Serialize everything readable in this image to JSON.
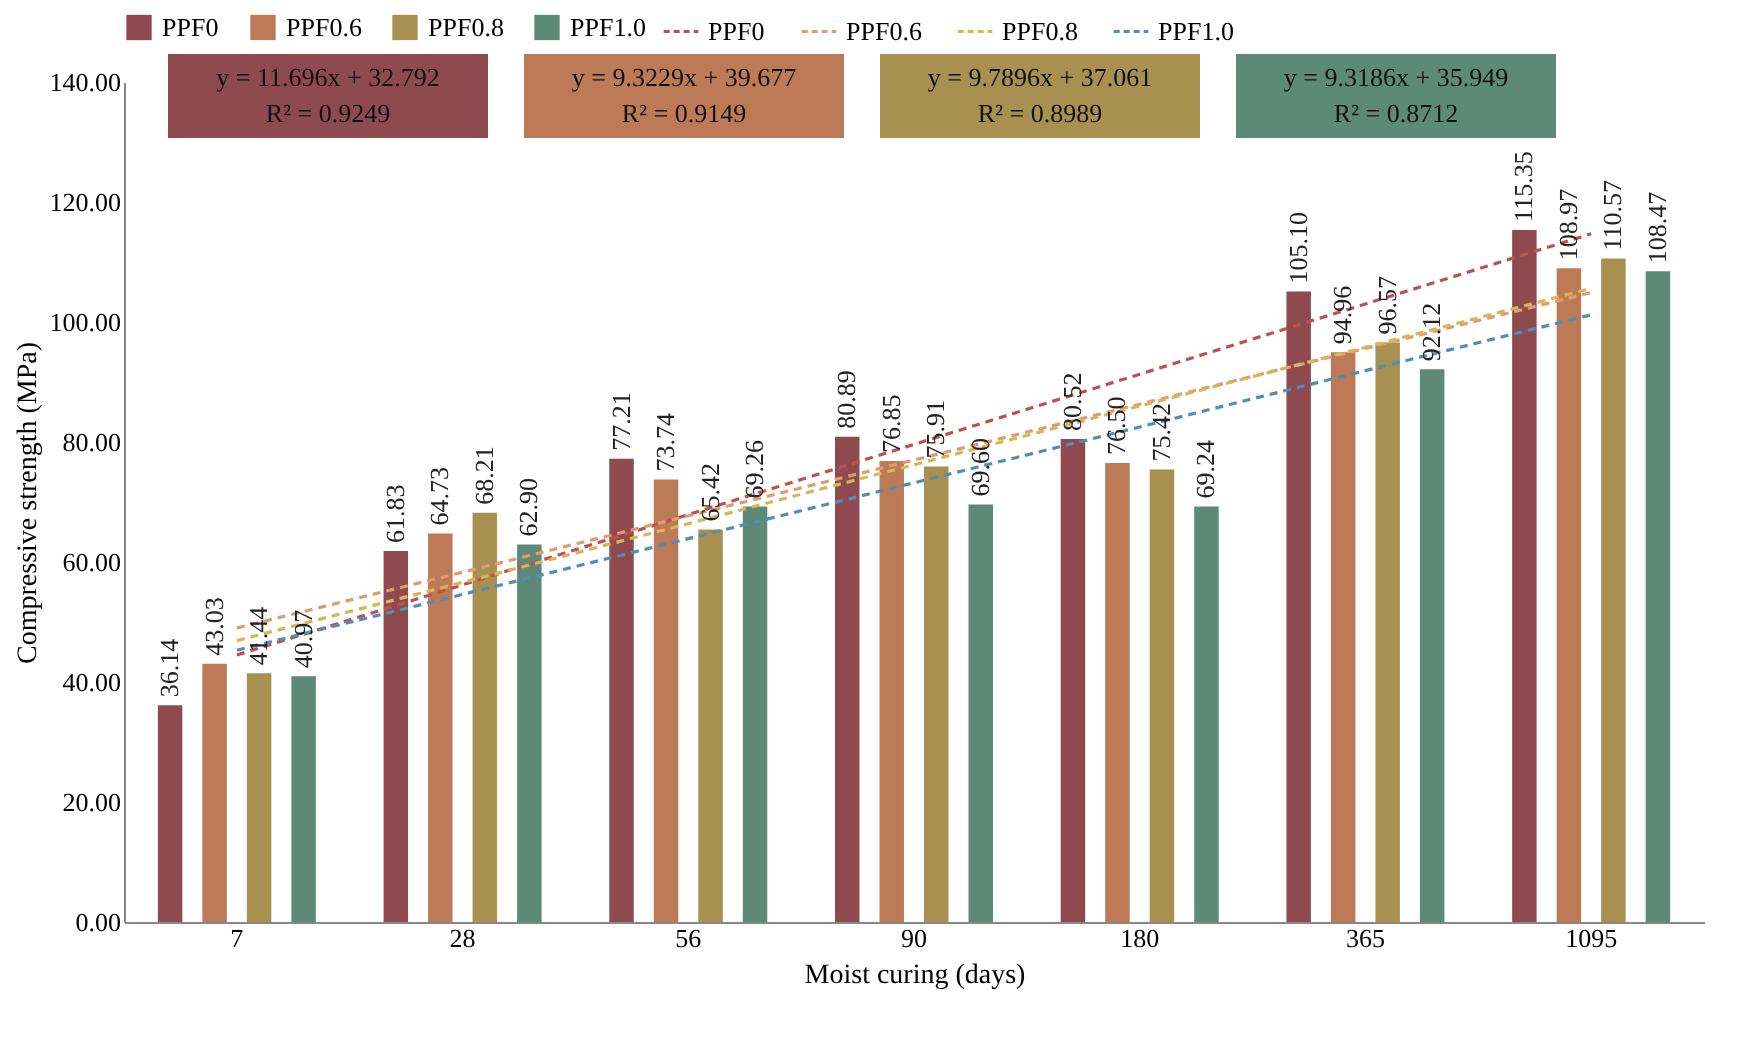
{
  "chart_data": {
    "type": "bar",
    "xlabel": "Moist curing (days)",
    "ylabel": "Compressive strength (MPa)",
    "categories": [
      "7",
      "28",
      "56",
      "90",
      "180",
      "365",
      "1095"
    ],
    "series": [
      {
        "name": "PPF0",
        "color": "#8e4a4e",
        "values": [
          36.14,
          61.83,
          77.21,
          80.89,
          80.52,
          105.1,
          115.35
        ],
        "value_labels": [
          "36.14",
          "61.83",
          "77.21",
          "80.89",
          "80.52",
          "105.10",
          "115.35"
        ]
      },
      {
        "name": "PPF0.6",
        "color": "#bd7a56",
        "values": [
          43.03,
          64.73,
          73.74,
          76.85,
          76.5,
          94.96,
          108.97
        ],
        "value_labels": [
          "43.03",
          "64.73",
          "73.74",
          "76.85",
          "76.50",
          "94.96",
          "108.97"
        ]
      },
      {
        "name": "PPF0.8",
        "color": "#a89050",
        "values": [
          41.44,
          68.21,
          65.42,
          75.91,
          75.42,
          96.57,
          110.57
        ],
        "value_labels": [
          "41.44",
          "68.21",
          "65.42",
          "75.91",
          "75.42",
          "96.57",
          "110.57"
        ]
      },
      {
        "name": "PPF1.0",
        "color": "#5d8a78",
        "values": [
          40.97,
          62.9,
          69.26,
          69.6,
          69.24,
          92.12,
          108.47
        ],
        "value_labels": [
          "40.97",
          "62.90",
          "69.26",
          "69.60",
          "69.24",
          "92.12",
          "108.47"
        ]
      },
      {
        "name": "PPF0",
        "type": "line",
        "color": "#c0504d",
        "line_style": "dashed",
        "marker": "none",
        "values": [
          44.5,
          56.2,
          67.9,
          79.6,
          91.3,
          103.0,
          114.7
        ]
      },
      {
        "name": "PPF0.6",
        "type": "line",
        "color": "#e39a6f",
        "line_style": "dashed",
        "marker": "none",
        "values": [
          49.0,
          58.3,
          67.7,
          77.0,
          86.3,
          95.6,
          104.9
        ]
      },
      {
        "name": "PPF0.8",
        "type": "line",
        "color": "#d6b656",
        "line_style": "dashed",
        "marker": "none",
        "values": [
          46.9,
          56.6,
          66.4,
          76.2,
          86.0,
          95.8,
          105.6
        ]
      },
      {
        "name": "PPF1.0",
        "type": "line",
        "color": "#4f8fb5",
        "line_style": "dashed",
        "marker": "none",
        "values": [
          45.3,
          54.6,
          63.9,
          73.2,
          82.5,
          91.9,
          101.2
        ]
      }
    ],
    "annotations": [
      "y = 11.696x + 32.792\nR² = 0.9249",
      "y = 9.3229x + 39.677\nR² = 0.9149",
      "y = 9.7896x + 37.061\nR² = 0.8989",
      "y = 9.3186x + 35.949\nR² = 0.8712"
    ],
    "ylim": [
      0,
      140
    ],
    "yticks": [
      {
        "value": 0,
        "label": "0.00"
      },
      {
        "value": 20,
        "label": "20.00"
      },
      {
        "value": 40,
        "label": "40.00"
      },
      {
        "value": 60,
        "label": "60.00"
      },
      {
        "value": 80,
        "label": "80.00"
      },
      {
        "value": 100,
        "label": "100.00"
      },
      {
        "value": 120,
        "label": "120.00"
      },
      {
        "value": 140,
        "label": "140.00"
      }
    ],
    "grid": false,
    "legend": "top"
  }
}
